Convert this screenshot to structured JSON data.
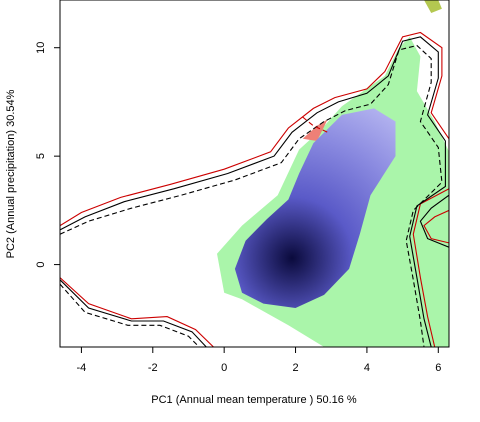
{
  "chart_data": {
    "type": "heatmap",
    "title": "",
    "xlabel": "PC1 (Annual mean temperature ) 50.16 %",
    "ylabel": "PC2 (Annual precipitation) 30.54%",
    "xlim": [
      -4.6,
      6.3
    ],
    "ylim": [
      -3.8,
      12.2
    ],
    "x_ticks": [
      -4,
      -2,
      0,
      2,
      4,
      6
    ],
    "y_ticks": [
      0,
      5,
      10
    ],
    "grid": false,
    "legend": "none",
    "colors": {
      "density_core": "#0a0a3c",
      "density_mid": "#5a5ac8",
      "density_edge": "#b4b4f0",
      "green_region": "#aaf5aa",
      "salmon_region": "#ee8077",
      "olive_region": "#b4c850",
      "contour_red": "#cc0000",
      "contour_black": "#000000"
    },
    "density_blob": {
      "center": [
        1.9,
        0.3
      ],
      "peak": 1.0,
      "outline": [
        [
          1.1,
          -1.8
        ],
        [
          0.5,
          -1.3
        ],
        [
          0.3,
          -0.2
        ],
        [
          0.6,
          1.1
        ],
        [
          1.2,
          2.1
        ],
        [
          1.8,
          3.0
        ],
        [
          2.1,
          4.2
        ],
        [
          2.5,
          5.6
        ],
        [
          3.3,
          6.9
        ],
        [
          4.2,
          7.2
        ],
        [
          4.8,
          6.6
        ],
        [
          4.8,
          5.0
        ],
        [
          4.1,
          3.2
        ],
        [
          3.8,
          1.4
        ],
        [
          3.5,
          -0.2
        ],
        [
          2.8,
          -1.4
        ],
        [
          2.0,
          -2.0
        ]
      ]
    },
    "green_region_outline": [
      [
        0.0,
        -1.3
      ],
      [
        -0.2,
        0.5
      ],
      [
        0.5,
        1.8
      ],
      [
        1.5,
        3.2
      ],
      [
        2.1,
        5.3
      ],
      [
        2.7,
        6.2
      ],
      [
        3.3,
        7.3
      ],
      [
        3.9,
        8.0
      ],
      [
        4.5,
        8.7
      ],
      [
        4.9,
        10.0
      ],
      [
        5.2,
        10.5
      ],
      [
        5.5,
        9.6
      ],
      [
        5.4,
        8.0
      ],
      [
        5.9,
        6.6
      ],
      [
        6.3,
        5.2
      ],
      [
        6.3,
        -3.8
      ],
      [
        2.8,
        -3.8
      ],
      [
        1.8,
        -2.8
      ],
      [
        0.5,
        -1.6
      ]
    ],
    "salmon_region_outline": [
      [
        2.2,
        5.8
      ],
      [
        2.6,
        6.4
      ],
      [
        2.9,
        6.7
      ],
      [
        2.6,
        5.7
      ]
    ],
    "olive_region_outline": [
      [
        5.6,
        12.2
      ],
      [
        5.8,
        11.6
      ],
      [
        6.1,
        11.8
      ],
      [
        6.0,
        12.2
      ]
    ],
    "contours": [
      {
        "color": "#cc0000",
        "dash": "solid",
        "points": [
          [
            -4.6,
            1.8
          ],
          [
            -4.0,
            2.4
          ],
          [
            -2.9,
            3.1
          ],
          [
            -1.5,
            3.7
          ],
          [
            0.0,
            4.4
          ],
          [
            1.3,
            5.2
          ],
          [
            1.8,
            6.3
          ],
          [
            2.5,
            7.2
          ],
          [
            3.1,
            7.7
          ],
          [
            4.0,
            8.1
          ],
          [
            4.5,
            8.9
          ],
          [
            5.0,
            10.5
          ],
          [
            5.5,
            10.7
          ],
          [
            6.1,
            10.0
          ],
          [
            6.1,
            8.7
          ],
          [
            5.8,
            7.0
          ],
          [
            6.3,
            5.8
          ],
          [
            6.3,
            3.5
          ],
          [
            5.5,
            2.8
          ],
          [
            5.3,
            1.4
          ],
          [
            5.5,
            -0.6
          ],
          [
            5.7,
            -2.4
          ],
          [
            5.9,
            -3.8
          ]
        ]
      },
      {
        "color": "#000000",
        "dash": "solid",
        "points": [
          [
            -4.6,
            1.6
          ],
          [
            -3.9,
            2.2
          ],
          [
            -2.8,
            2.9
          ],
          [
            -1.4,
            3.5
          ],
          [
            0.1,
            4.2
          ],
          [
            1.4,
            5.0
          ],
          [
            1.9,
            6.1
          ],
          [
            2.6,
            7.0
          ],
          [
            3.2,
            7.5
          ],
          [
            4.0,
            7.9
          ],
          [
            4.6,
            8.7
          ],
          [
            5.0,
            10.3
          ],
          [
            5.5,
            10.5
          ],
          [
            6.0,
            9.8
          ],
          [
            6.0,
            8.6
          ],
          [
            5.7,
            6.9
          ],
          [
            6.2,
            5.7
          ],
          [
            6.2,
            3.6
          ],
          [
            5.4,
            2.7
          ],
          [
            5.2,
            1.3
          ],
          [
            5.4,
            -0.6
          ],
          [
            5.6,
            -2.5
          ],
          [
            5.8,
            -3.8
          ]
        ]
      },
      {
        "color": "#000000",
        "dash": "dashed",
        "points": [
          [
            -4.6,
            1.4
          ],
          [
            -3.8,
            2.0
          ],
          [
            -2.6,
            2.6
          ],
          [
            -1.2,
            3.2
          ],
          [
            0.3,
            3.9
          ],
          [
            1.6,
            4.7
          ],
          [
            2.1,
            5.8
          ],
          [
            2.8,
            6.6
          ],
          [
            3.4,
            7.1
          ],
          [
            4.1,
            7.4
          ],
          [
            4.6,
            8.3
          ],
          [
            4.9,
            9.9
          ],
          [
            5.4,
            10.1
          ],
          [
            5.8,
            9.5
          ],
          [
            5.8,
            8.4
          ],
          [
            5.5,
            6.6
          ],
          [
            6.0,
            5.4
          ],
          [
            6.1,
            3.8
          ],
          [
            5.3,
            2.5
          ],
          [
            5.1,
            1.1
          ],
          [
            5.3,
            -0.7
          ],
          [
            5.5,
            -2.6
          ],
          [
            5.6,
            -3.8
          ]
        ]
      },
      {
        "color": "#cc0000",
        "dash": "solid",
        "points": [
          [
            -4.6,
            -0.6
          ],
          [
            -3.8,
            -1.8
          ],
          [
            -2.6,
            -2.5
          ],
          [
            -1.6,
            -2.4
          ],
          [
            -0.8,
            -3.0
          ],
          [
            -0.3,
            -3.8
          ]
        ]
      },
      {
        "color": "#000000",
        "dash": "solid",
        "points": [
          [
            -4.6,
            -0.7
          ],
          [
            -3.8,
            -2.0
          ],
          [
            -2.6,
            -2.6
          ],
          [
            -1.7,
            -2.6
          ],
          [
            -0.9,
            -3.1
          ],
          [
            -0.5,
            -3.8
          ]
        ]
      },
      {
        "color": "#000000",
        "dash": "dashed",
        "points": [
          [
            -4.6,
            -0.9
          ],
          [
            -3.9,
            -2.2
          ],
          [
            -2.7,
            -2.8
          ],
          [
            -1.8,
            -2.8
          ],
          [
            -1.0,
            -3.3
          ],
          [
            -0.7,
            -3.8
          ]
        ]
      },
      {
        "color": "#cc0000",
        "dash": "solid",
        "points": [
          [
            6.3,
            2.5
          ],
          [
            5.9,
            2.2
          ],
          [
            5.6,
            1.8
          ],
          [
            5.8,
            1.2
          ],
          [
            6.3,
            1.0
          ]
        ]
      },
      {
        "color": "#000000",
        "dash": "solid",
        "points": [
          [
            6.3,
            3.2
          ],
          [
            5.8,
            2.6
          ],
          [
            5.5,
            2.0
          ],
          [
            5.7,
            1.2
          ],
          [
            6.3,
            0.8
          ]
        ]
      },
      {
        "color": "#cc0000",
        "dash": "dashed",
        "points": [
          [
            2.2,
            6.8
          ],
          [
            2.5,
            6.4
          ],
          [
            2.9,
            6.1
          ]
        ]
      }
    ]
  }
}
